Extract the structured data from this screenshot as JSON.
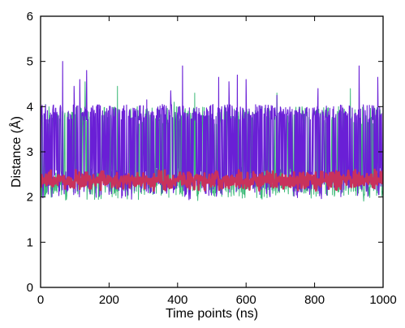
{
  "chart_data": {
    "type": "line",
    "title": "",
    "xlabel": "Time points (ns)",
    "ylabel": "Distance (Å)",
    "xlim": [
      0,
      1000
    ],
    "ylim": [
      0,
      6
    ],
    "x_ticks": [
      0,
      200,
      400,
      600,
      800,
      1000
    ],
    "y_ticks": [
      0,
      1,
      2,
      3,
      4,
      5,
      6
    ],
    "grid": false,
    "legend": "none",
    "series": [
      {
        "color": "#3dba78",
        "x_range": [
          0,
          1000
        ],
        "baseline": 2.3,
        "noise_low": 1.8,
        "noise_high": 2.75,
        "upper_band": [
          3.6,
          4.0
        ],
        "spikes": [
          {
            "x": 15,
            "y": 4.05
          },
          {
            "x": 130,
            "y": 4.55
          },
          {
            "x": 225,
            "y": 4.45
          },
          {
            "x": 390,
            "y": 4.1
          },
          {
            "x": 450,
            "y": 4.3
          },
          {
            "x": 690,
            "y": 4.3
          },
          {
            "x": 905,
            "y": 4.4
          }
        ]
      },
      {
        "color": "#6a1fd6",
        "x_range": [
          0,
          1000
        ],
        "baseline": 2.3,
        "noise_low": 1.85,
        "noise_high": 2.75,
        "upper_band": [
          3.7,
          4.05
        ],
        "spikes": [
          {
            "x": 65,
            "y": 5.0
          },
          {
            "x": 98,
            "y": 4.45
          },
          {
            "x": 115,
            "y": 4.6
          },
          {
            "x": 135,
            "y": 4.8
          },
          {
            "x": 310,
            "y": 4.15
          },
          {
            "x": 380,
            "y": 4.35
          },
          {
            "x": 415,
            "y": 4.9
          },
          {
            "x": 520,
            "y": 4.65
          },
          {
            "x": 550,
            "y": 4.55
          },
          {
            "x": 575,
            "y": 4.7
          },
          {
            "x": 600,
            "y": 4.6
          },
          {
            "x": 690,
            "y": 4.25
          },
          {
            "x": 810,
            "y": 4.4
          },
          {
            "x": 930,
            "y": 4.9
          },
          {
            "x": 985,
            "y": 4.65
          }
        ]
      },
      {
        "color": "#c8325c",
        "x_range": [
          0,
          1000
        ],
        "baseline": 2.37,
        "noise_low": 2.15,
        "noise_high": 2.6
      }
    ]
  }
}
